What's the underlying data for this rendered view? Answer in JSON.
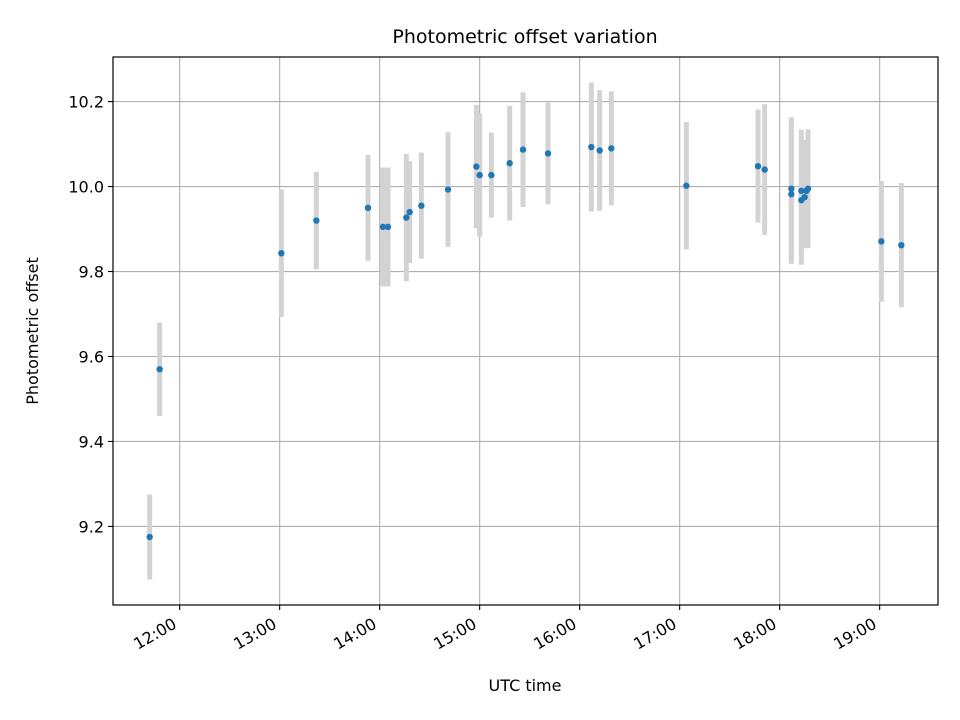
{
  "chart_data": {
    "type": "scatter",
    "title": "Photometric offset variation",
    "xlabel": "UTC time",
    "ylabel": "Photometric offset",
    "x_axis_type": "time",
    "xlim": [
      "11:20",
      "19:35"
    ],
    "ylim": [
      9.015,
      10.305
    ],
    "x_ticks": [
      "12:00",
      "13:00",
      "14:00",
      "15:00",
      "16:00",
      "17:00",
      "18:00",
      "19:00"
    ],
    "y_ticks": [
      9.2,
      9.4,
      9.6,
      9.8,
      10.0,
      10.2
    ],
    "y_tick_labels": [
      "9.2",
      "9.4",
      "9.6",
      "9.8",
      "10.0",
      "10.2"
    ],
    "x_tick_rotation": "30°",
    "grid": true,
    "legend": "none",
    "point_color": "#1f77b4",
    "errorbar_color": "#d3d3d3",
    "points": [
      {
        "x": "11:42",
        "y": 9.175,
        "err": 0.1
      },
      {
        "x": "11:48",
        "y": 9.57,
        "err": 0.11
      },
      {
        "x": "13:01",
        "y": 9.843,
        "err": 0.15
      },
      {
        "x": "13:22",
        "y": 9.92,
        "err": 0.115
      },
      {
        "x": "13:53",
        "y": 9.95,
        "err": 0.125
      },
      {
        "x": "14:02",
        "y": 9.905,
        "err": 0.14
      },
      {
        "x": "14:05",
        "y": 9.905,
        "err": 0.14
      },
      {
        "x": "14:16",
        "y": 9.927,
        "err": 0.15
      },
      {
        "x": "14:18",
        "y": 9.94,
        "err": 0.12
      },
      {
        "x": "14:25",
        "y": 9.955,
        "err": 0.125
      },
      {
        "x": "14:41",
        "y": 9.993,
        "err": 0.135
      },
      {
        "x": "14:58",
        "y": 10.047,
        "err": 0.145
      },
      {
        "x": "15:00",
        "y": 10.027,
        "err": 0.145
      },
      {
        "x": "15:07",
        "y": 10.027,
        "err": 0.1
      },
      {
        "x": "15:18",
        "y": 10.055,
        "err": 0.135
      },
      {
        "x": "15:26",
        "y": 10.087,
        "err": 0.135
      },
      {
        "x": "15:41",
        "y": 10.078,
        "err": 0.12
      },
      {
        "x": "16:07",
        "y": 10.093,
        "err": 0.152
      },
      {
        "x": "16:12",
        "y": 10.085,
        "err": 0.142
      },
      {
        "x": "16:19",
        "y": 10.09,
        "err": 0.134
      },
      {
        "x": "17:04",
        "y": 10.002,
        "err": 0.15
      },
      {
        "x": "17:47",
        "y": 10.048,
        "err": 0.133
      },
      {
        "x": "17:51",
        "y": 10.04,
        "err": 0.154
      },
      {
        "x": "18:07",
        "y": 9.995,
        "err": 0.168
      },
      {
        "x": "18:07",
        "y": 9.982,
        "err": 0.164
      },
      {
        "x": "18:13",
        "y": 9.99,
        "err": 0.144
      },
      {
        "x": "18:13",
        "y": 9.968,
        "err": 0.152
      },
      {
        "x": "18:15",
        "y": 9.975,
        "err": 0.12
      },
      {
        "x": "18:16",
        "y": 9.99,
        "err": 0.12
      },
      {
        "x": "18:17",
        "y": 9.995,
        "err": 0.14
      },
      {
        "x": "19:01",
        "y": 9.871,
        "err": 0.142
      },
      {
        "x": "19:13",
        "y": 9.862,
        "err": 0.146
      }
    ]
  }
}
